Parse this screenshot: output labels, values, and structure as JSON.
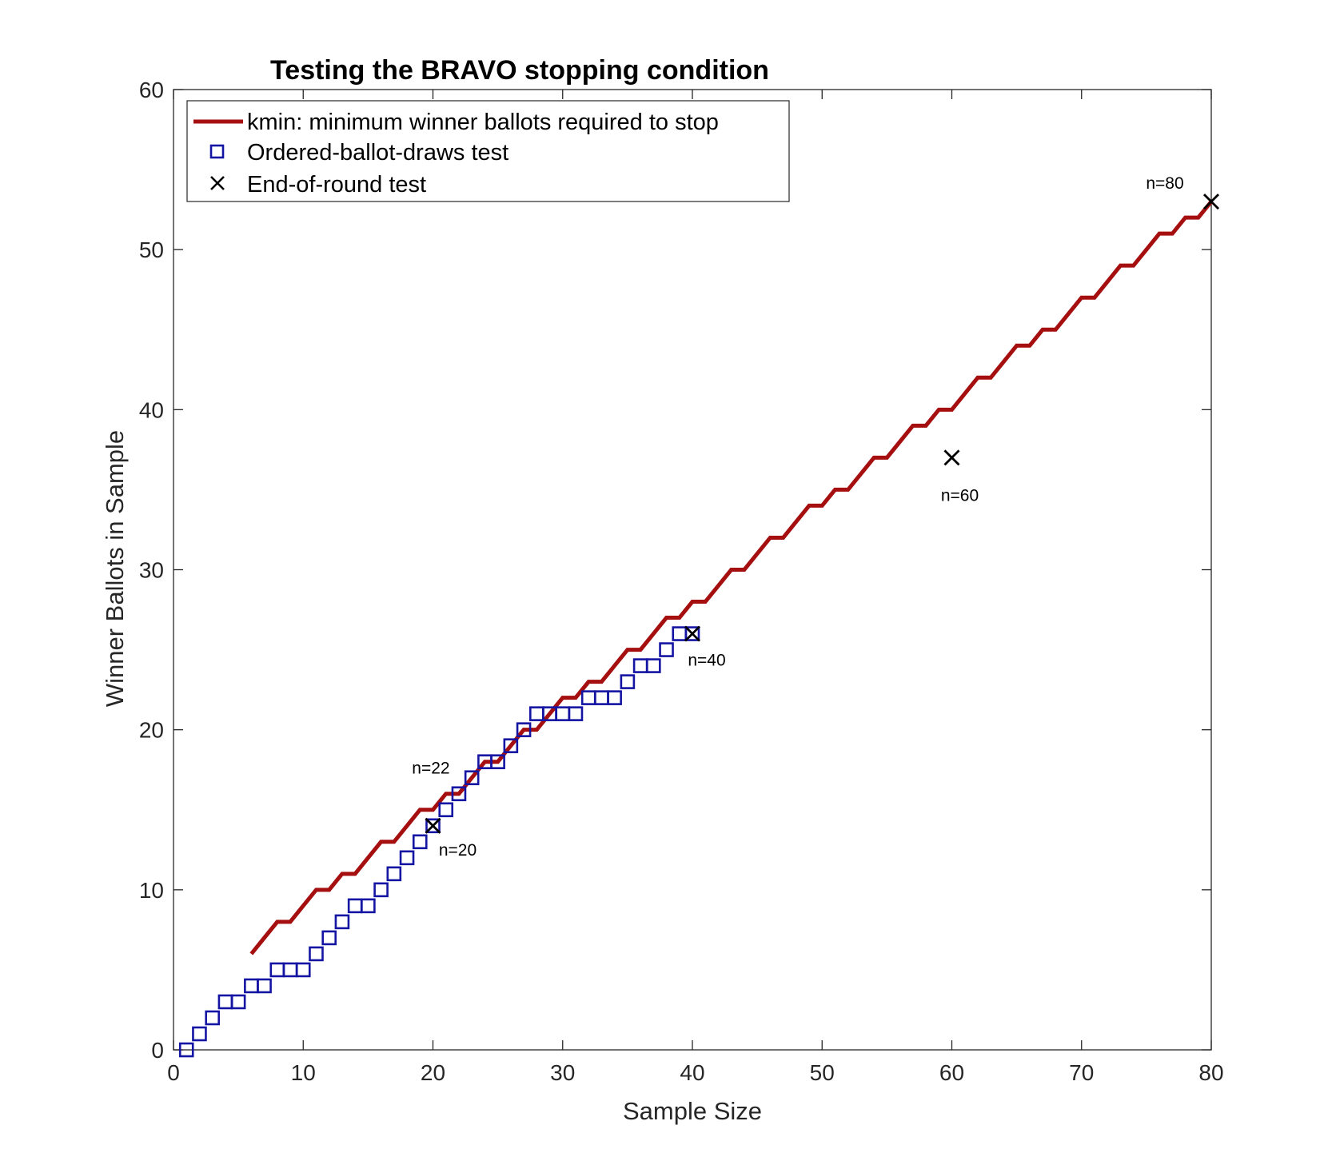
{
  "chart_data": {
    "type": "scatter",
    "title": "Testing the BRAVO stopping condition",
    "xlabel": "Sample Size",
    "ylabel": "Winner Ballots in Sample",
    "xlim": [
      0,
      80
    ],
    "ylim": [
      0,
      60
    ],
    "xticks": [
      0,
      10,
      20,
      30,
      40,
      50,
      60,
      70,
      80
    ],
    "yticks": [
      0,
      10,
      20,
      30,
      40,
      50,
      60
    ],
    "grid": false,
    "legend_position": "top-left",
    "series": [
      {
        "name": "kmin: minimum winner ballots required to stop",
        "kind": "line",
        "color": "#A50F0F",
        "x": [
          6,
          7,
          8,
          9,
          10,
          11,
          12,
          13,
          14,
          15,
          16,
          17,
          18,
          19,
          20,
          21,
          22,
          23,
          24,
          25,
          26,
          27,
          28,
          29,
          30,
          31,
          32,
          33,
          34,
          35,
          36,
          37,
          38,
          39,
          40,
          41,
          42,
          43,
          44,
          45,
          46,
          47,
          48,
          49,
          50,
          51,
          52,
          53,
          54,
          55,
          56,
          57,
          58,
          59,
          60,
          61,
          62,
          63,
          64,
          65,
          66,
          67,
          68,
          69,
          70,
          71,
          72,
          73,
          74,
          75,
          76,
          77,
          78,
          79,
          80
        ],
        "y": [
          6,
          7,
          8,
          8,
          9,
          10,
          10,
          11,
          11,
          12,
          13,
          13,
          14,
          15,
          15,
          16,
          16,
          17,
          18,
          18,
          19,
          20,
          20,
          21,
          22,
          22,
          23,
          23,
          24,
          25,
          25,
          26,
          27,
          27,
          28,
          28,
          29,
          30,
          30,
          31,
          32,
          32,
          33,
          34,
          34,
          35,
          35,
          36,
          37,
          37,
          38,
          39,
          39,
          40,
          40,
          41,
          42,
          42,
          43,
          44,
          44,
          45,
          45,
          46,
          47,
          47,
          48,
          49,
          49,
          50,
          51,
          51,
          52,
          52,
          53
        ]
      },
      {
        "name": "Ordered-ballot-draws test",
        "kind": "marker-square",
        "color": "#1515A3",
        "x": [
          1,
          2,
          3,
          4,
          5,
          6,
          7,
          8,
          9,
          10,
          11,
          12,
          13,
          14,
          15,
          16,
          17,
          18,
          19,
          20,
          21,
          22,
          23,
          24,
          25,
          26,
          27,
          28,
          29,
          30,
          31,
          32,
          33,
          34,
          35,
          36,
          37,
          38,
          39,
          40
        ],
        "y": [
          0,
          1,
          2,
          3,
          3,
          4,
          4,
          5,
          5,
          5,
          6,
          7,
          8,
          9,
          9,
          10,
          11,
          12,
          13,
          14,
          15,
          16,
          17,
          18,
          18,
          19,
          20,
          21,
          21,
          21,
          21,
          22,
          22,
          22,
          23,
          24,
          24,
          25,
          26,
          26
        ]
      },
      {
        "name": "End-of-round test",
        "kind": "marker-x",
        "color": "#000000",
        "x": [
          20,
          40,
          60,
          80
        ],
        "y": [
          14,
          26,
          37,
          53
        ]
      }
    ],
    "annotations": [
      {
        "text": "n=22",
        "x": 22,
        "y": 16
      },
      {
        "text": "n=20",
        "x": 20,
        "y": 14
      },
      {
        "text": "n=40",
        "x": 40,
        "y": 26
      },
      {
        "text": "n=60",
        "x": 60,
        "y": 37
      },
      {
        "text": "n=80",
        "x": 80,
        "y": 53
      }
    ]
  }
}
